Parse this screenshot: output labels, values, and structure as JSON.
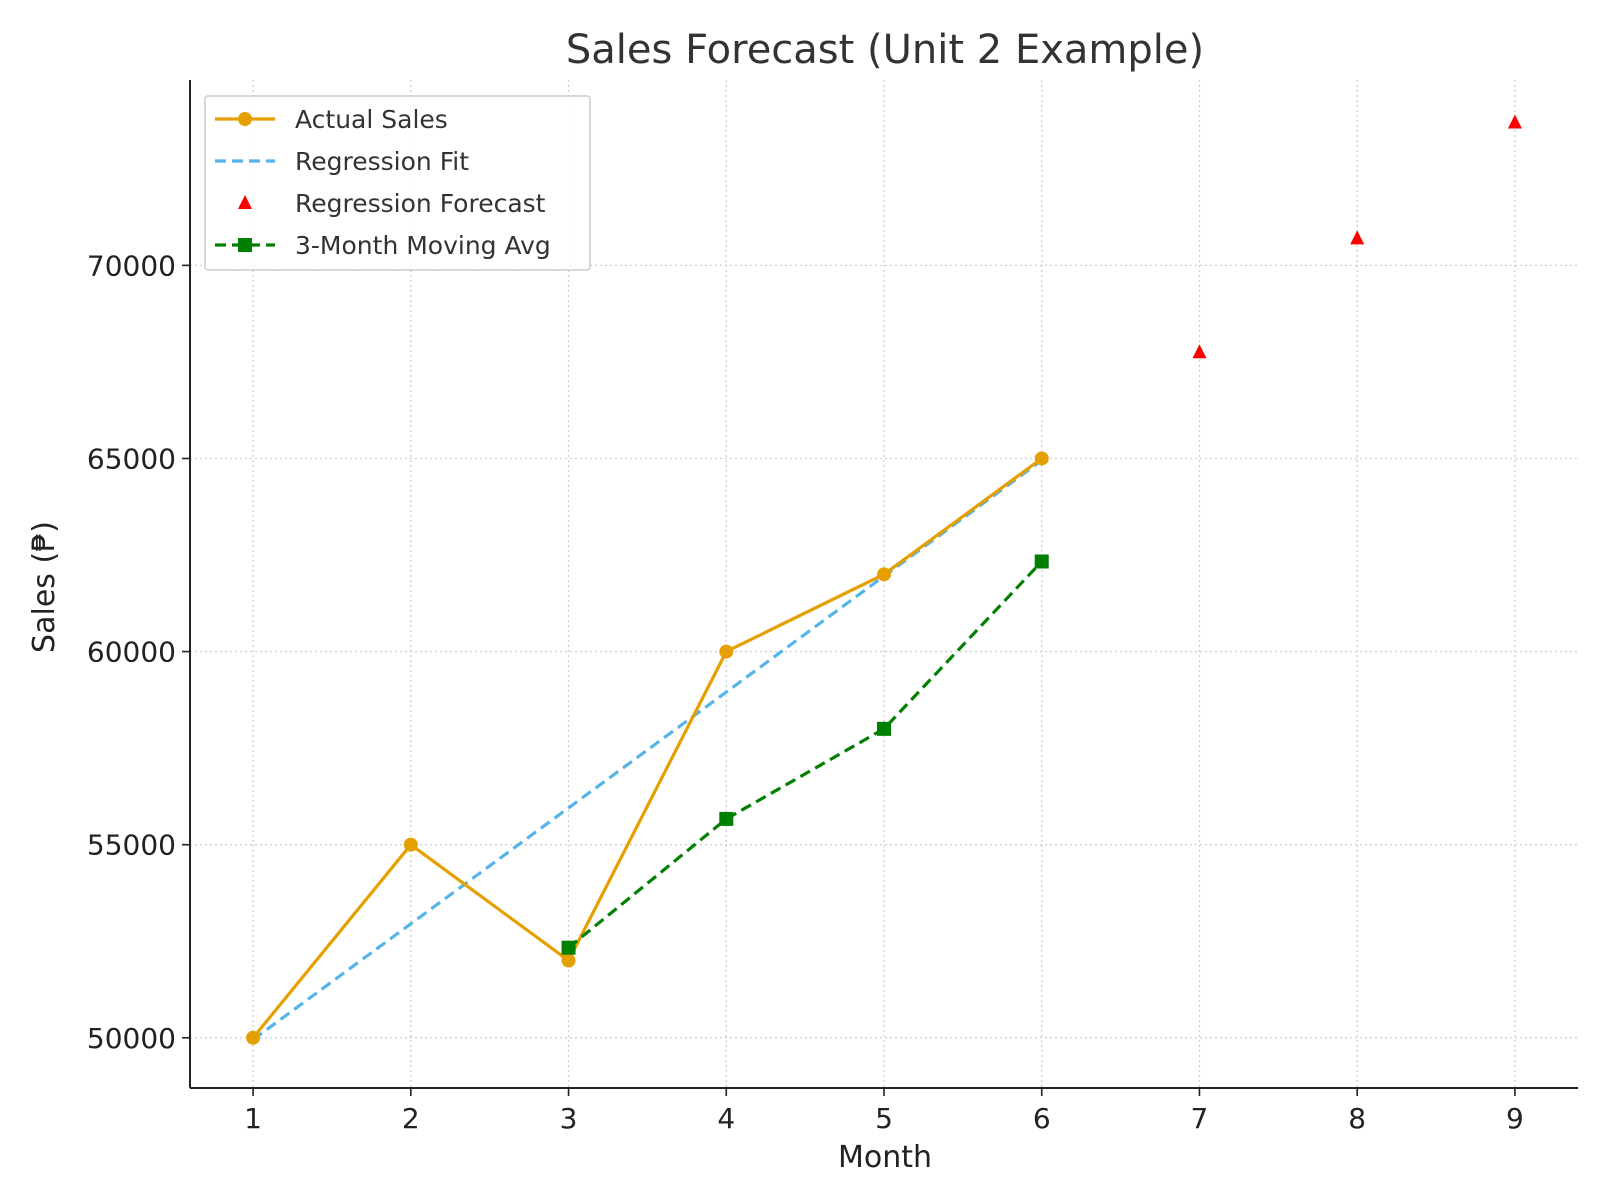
{
  "chart_data": {
    "type": "line",
    "title": "Sales Forecast (Unit 2 Example)",
    "xlabel": "Month",
    "ylabel": "Sales (₱)",
    "x_ticks": [
      1,
      2,
      3,
      4,
      5,
      6,
      7,
      8,
      9
    ],
    "y_ticks": [
      50000,
      55000,
      60000,
      65000,
      70000
    ],
    "xlim": [
      0.6,
      9.4
    ],
    "ylim": [
      48700,
      74800
    ],
    "grid": true,
    "legend_position": "top-left",
    "series": [
      {
        "name": "Actual Sales",
        "kind": "line-circle",
        "color": "#E69F00",
        "x": [
          1,
          2,
          3,
          4,
          5,
          6
        ],
        "y": [
          50000,
          55000,
          52000,
          60000,
          62000,
          65000
        ]
      },
      {
        "name": "Regression Fit",
        "kind": "dashed-line",
        "color": "#56B4E9",
        "x": [
          1,
          2,
          3,
          4,
          5,
          6
        ],
        "y": [
          49952,
          52952,
          55952,
          58952,
          61952,
          64952
        ]
      },
      {
        "name": "Regression Forecast",
        "kind": "triangle-markers",
        "color": "#FF0000",
        "x": [
          7,
          8,
          9
        ],
        "y": [
          67750,
          70700,
          73700
        ]
      },
      {
        "name": "3-Month Moving Avg",
        "kind": "dashed-line-square",
        "color": "#008000",
        "x": [
          3,
          4,
          5,
          6
        ],
        "y": [
          52333,
          55667,
          58000,
          62333
        ]
      }
    ]
  }
}
